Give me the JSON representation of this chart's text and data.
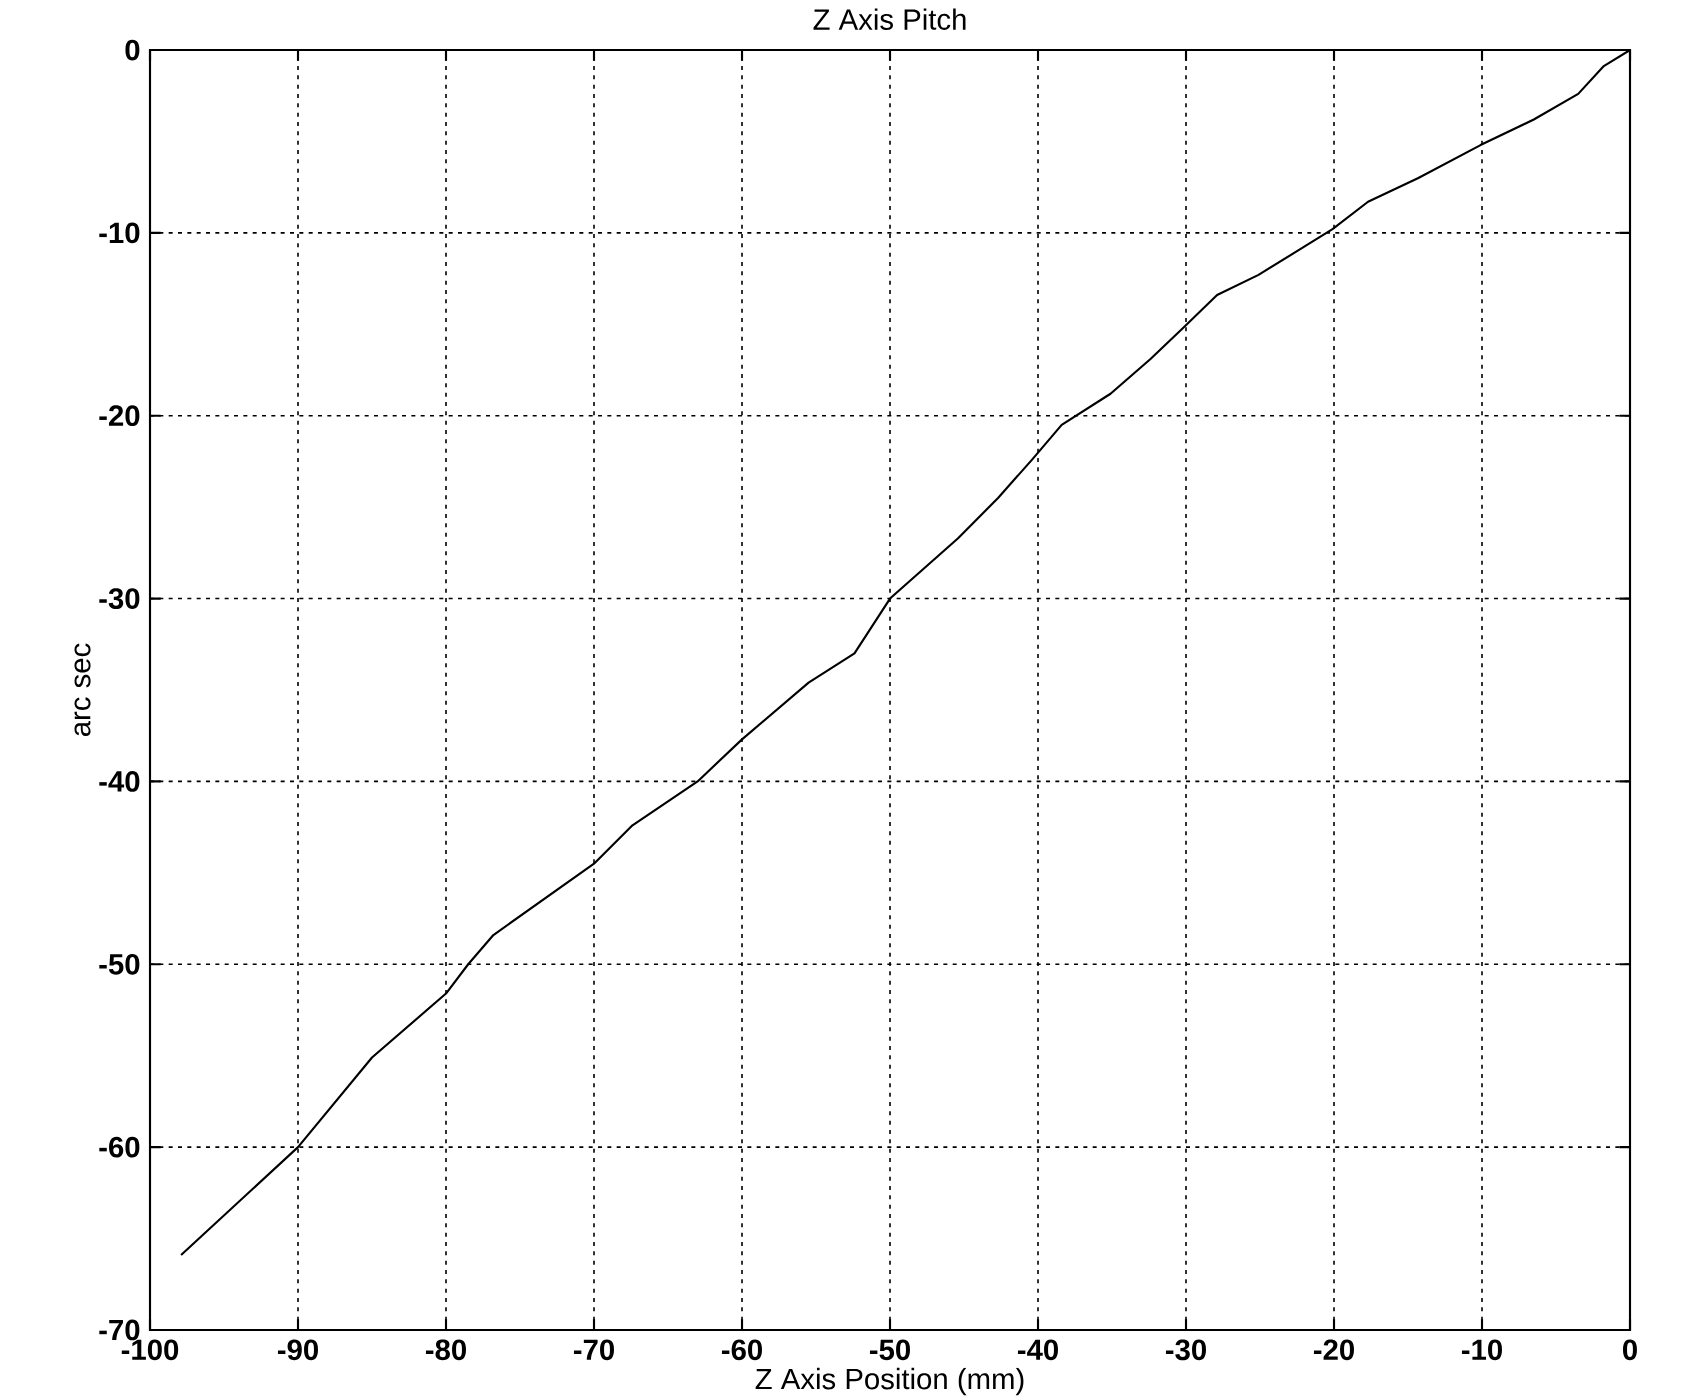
{
  "chart_data": {
    "type": "line",
    "title": "Z Axis Pitch",
    "xlabel": "Z Axis Position (mm)",
    "ylabel": "arc sec",
    "x": [
      -97.9,
      -90,
      -85,
      -80,
      -78.5,
      -76.8,
      -70,
      -67.4,
      -63,
      -60,
      -55.5,
      -52.4,
      -50,
      -45.4,
      -42.7,
      -40.4,
      -38.4,
      -35.1,
      -32.4,
      -30.2,
      -27.9,
      -25.1,
      -22.5,
      -20.1,
      -17.7,
      -14.3,
      -10.1,
      -6.5,
      -3.5,
      -1.8,
      0
    ],
    "series": [
      {
        "color": "#000000",
        "values": [
          -65.9,
          -60,
          -55.1,
          -51.6,
          -50,
          -48.4,
          -44.5,
          -42.4,
          -40,
          -37.7,
          -34.6,
          -33,
          -30,
          -26.7,
          -24.5,
          -22.4,
          -20.5,
          -18.8,
          -16.9,
          -15.2,
          -13.4,
          -12.3,
          -11,
          -9.8,
          -8.3,
          -7,
          -5.2,
          -3.8,
          -2.4,
          -0.9,
          0
        ]
      }
    ],
    "xlim": [
      -100,
      0
    ],
    "ylim": [
      -70,
      0
    ],
    "xticks": [
      -100,
      -90,
      -80,
      -70,
      -60,
      -50,
      -40,
      -30,
      -20,
      -10,
      0
    ],
    "yticks": [
      -70,
      -60,
      -50,
      -40,
      -30,
      -20,
      -10,
      0
    ],
    "grid": true,
    "marker": "none",
    "line_style": "solid"
  }
}
